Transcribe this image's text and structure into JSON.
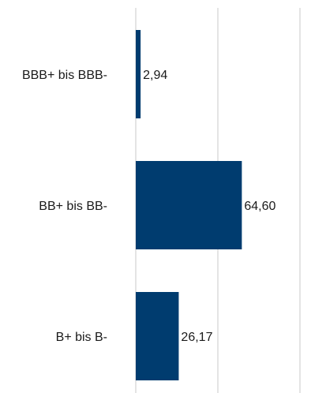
{
  "chart_data": {
    "type": "bar",
    "orientation": "horizontal",
    "categories": [
      "BBB+ bis BBB-",
      "BB+ bis BB-",
      "B+ bis B-"
    ],
    "values": [
      2.94,
      64.6,
      26.17
    ],
    "value_labels": [
      "2,94",
      "64,60",
      "26,17"
    ],
    "xlim": [
      0,
      100
    ],
    "x_gridlines": [
      0,
      50,
      100,
      150
    ],
    "grid": true,
    "legend": "none",
    "colors": {
      "bar": "#003c6f",
      "grid": "#c8c8c8",
      "text": "#1a1a1a"
    }
  }
}
